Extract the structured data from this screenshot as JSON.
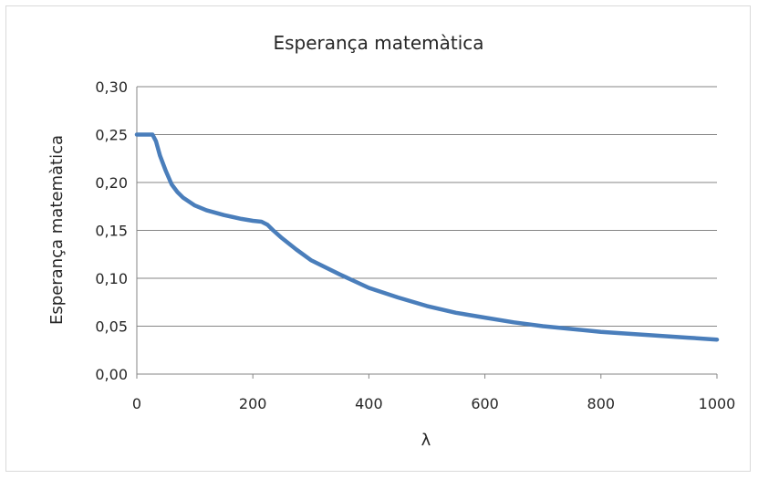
{
  "chart_data": {
    "type": "line",
    "title": "Esperança matemàtica",
    "xlabel": "λ",
    "ylabel": "Esperança matemàtica",
    "xlim": [
      0,
      1000
    ],
    "ylim": [
      0,
      0.3
    ],
    "x_ticks": [
      {
        "value": 0,
        "label": "0"
      },
      {
        "value": 200,
        "label": "200"
      },
      {
        "value": 400,
        "label": "400"
      },
      {
        "value": 600,
        "label": "600"
      },
      {
        "value": 800,
        "label": "800"
      },
      {
        "value": 1000,
        "label": "1000"
      }
    ],
    "y_ticks": [
      {
        "value": 0.0,
        "label": "0,00"
      },
      {
        "value": 0.05,
        "label": "0,05"
      },
      {
        "value": 0.1,
        "label": "0,10"
      },
      {
        "value": 0.15,
        "label": "0,15"
      },
      {
        "value": 0.2,
        "label": "0,20"
      },
      {
        "value": 0.25,
        "label": "0,25"
      },
      {
        "value": 0.3,
        "label": "0,30"
      }
    ],
    "grid": "horizontal",
    "legend": "none",
    "series": [
      {
        "color": "#4a7ebb",
        "x": [
          0,
          10,
          20,
          27,
          33,
          40,
          50,
          60,
          70,
          80,
          100,
          120,
          150,
          180,
          200,
          215,
          225,
          235,
          250,
          275,
          300,
          350,
          400,
          450,
          500,
          550,
          600,
          650,
          700,
          750,
          800,
          850,
          900,
          950,
          1000
        ],
        "y": [
          0.25,
          0.25,
          0.25,
          0.25,
          0.243,
          0.228,
          0.212,
          0.198,
          0.19,
          0.184,
          0.176,
          0.171,
          0.166,
          0.162,
          0.16,
          0.159,
          0.156,
          0.15,
          0.142,
          0.13,
          0.119,
          0.104,
          0.09,
          0.08,
          0.071,
          0.064,
          0.059,
          0.054,
          0.05,
          0.047,
          0.044,
          0.042,
          0.04,
          0.038,
          0.036
        ]
      }
    ]
  }
}
